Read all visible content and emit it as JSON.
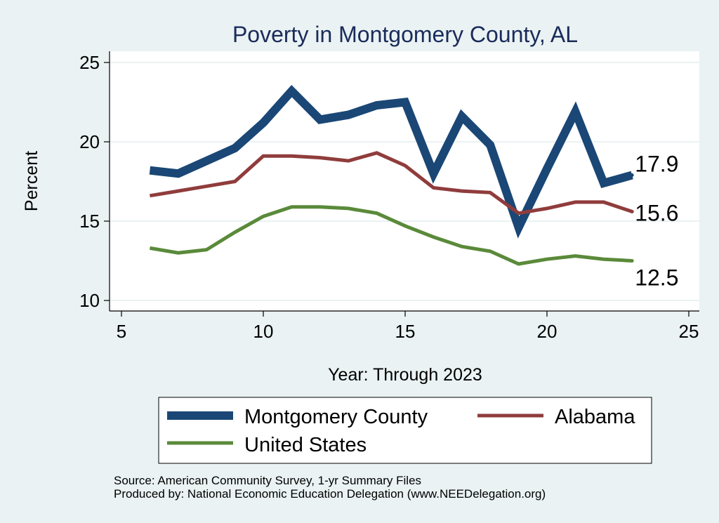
{
  "colors": {
    "background": "#eaf2f3",
    "plot_area": "#ffffff",
    "grid": "#eaf2f3",
    "axis": "#000000",
    "title": "#1a2b5a"
  },
  "chart_data": {
    "type": "line",
    "title": "Poverty in Montgomery County, AL",
    "xlabel": "Year: Through 2023",
    "ylabel": "Percent",
    "xlim": [
      5,
      25
    ],
    "ylim": [
      10,
      25
    ],
    "x_ticks": [
      5,
      10,
      15,
      20,
      25
    ],
    "y_ticks": [
      10,
      15,
      20,
      25
    ],
    "grid": true,
    "legend_position": "bottom",
    "series": [
      {
        "name": "Montgomery County",
        "color": "#1a4775",
        "width": "thick",
        "x": [
          6,
          7,
          8,
          9,
          10,
          11,
          12,
          13,
          14,
          15,
          16,
          17,
          18,
          19,
          20,
          21,
          22,
          23
        ],
        "y": [
          18.2,
          18.0,
          18.8,
          19.6,
          21.2,
          23.2,
          21.4,
          21.7,
          22.3,
          22.5,
          18.0,
          21.6,
          19.8,
          14.6,
          18.3,
          21.9,
          17.4,
          17.9
        ],
        "end_label": "17.9"
      },
      {
        "name": "Alabama",
        "color": "#903c3c",
        "width": "medium",
        "x": [
          6,
          7,
          8,
          9,
          10,
          11,
          12,
          13,
          14,
          15,
          16,
          17,
          18,
          19,
          20,
          21,
          22,
          23
        ],
        "y": [
          16.6,
          16.9,
          17.2,
          17.5,
          19.1,
          19.1,
          19.0,
          18.8,
          19.3,
          18.5,
          17.1,
          16.9,
          16.8,
          15.5,
          15.8,
          16.2,
          16.2,
          15.6
        ],
        "end_label": "15.6"
      },
      {
        "name": "United States",
        "color": "#5a8a3a",
        "width": "medium",
        "x": [
          6,
          7,
          8,
          9,
          10,
          11,
          12,
          13,
          14,
          15,
          16,
          17,
          18,
          19,
          20,
          21,
          22,
          23
        ],
        "y": [
          13.3,
          13.0,
          13.2,
          14.3,
          15.3,
          15.9,
          15.9,
          15.8,
          15.5,
          14.7,
          14.0,
          13.4,
          13.1,
          12.3,
          12.6,
          12.8,
          12.6,
          12.5
        ],
        "end_label": "12.5"
      }
    ],
    "notes": [
      "Source: American Community Survey, 1-yr Summary Files",
      "Produced by: National Economic Education Delegation (www.NEEDelegation.org)"
    ]
  }
}
